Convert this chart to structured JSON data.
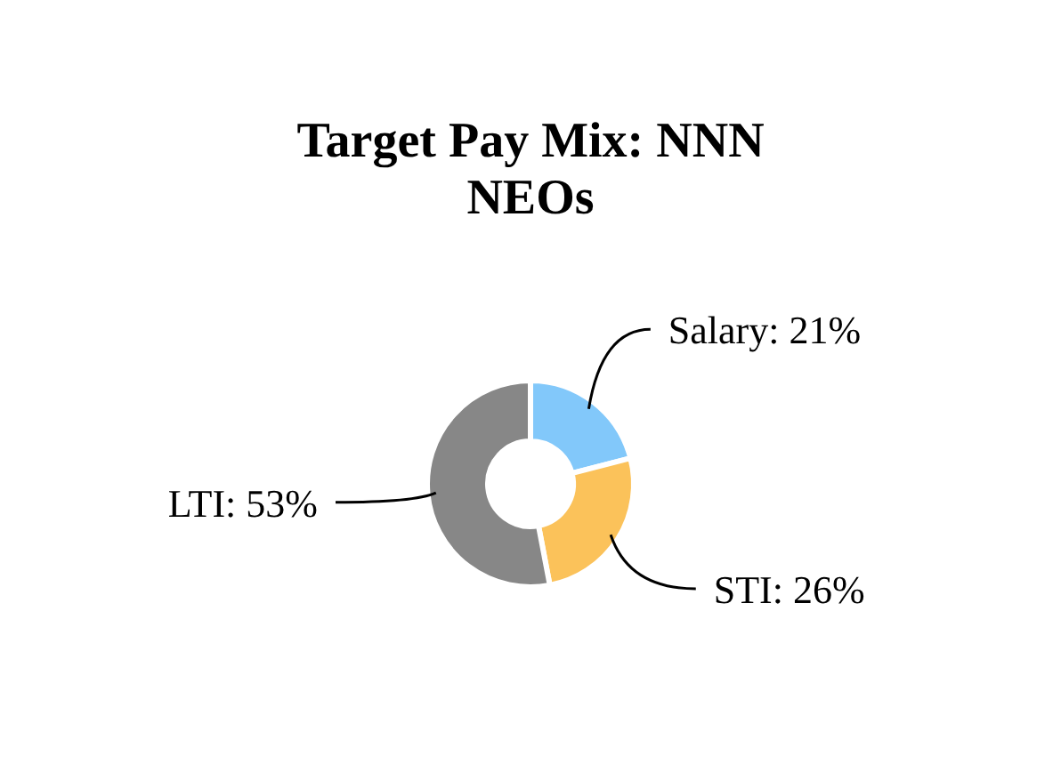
{
  "chart_data": {
    "type": "donut",
    "title": "Target Pay Mix: NNN NEOs",
    "categories": [
      "Salary",
      "STI",
      "LTI"
    ],
    "values": [
      21,
      26,
      53
    ],
    "value_labels": [
      "21%",
      "26%",
      "53%"
    ],
    "colors": [
      "#82c8fa",
      "#fbc25a",
      "#878787"
    ]
  }
}
